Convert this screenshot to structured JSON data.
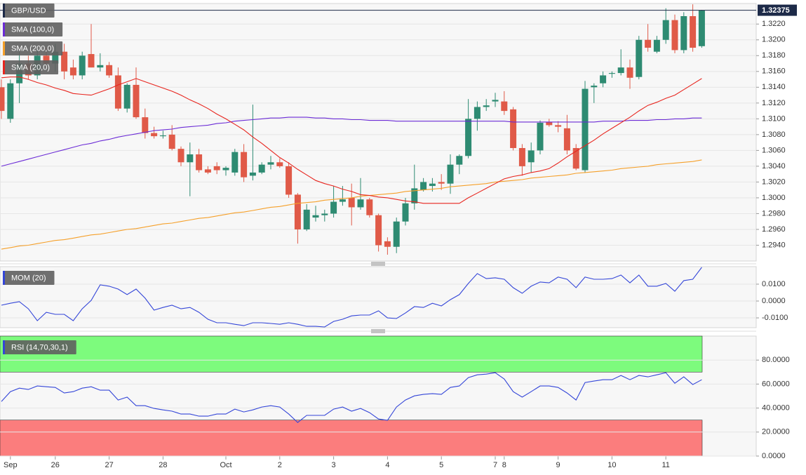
{
  "chart_data": [
    {
      "type": "candlestick",
      "title": "GBP/USD",
      "categories": [
        null,
        "Sep",
        null,
        null,
        null,
        null,
        "26",
        null,
        null,
        null,
        null,
        null,
        "27",
        null,
        null,
        null,
        null,
        null,
        "28",
        null,
        null,
        null,
        null,
        null,
        null,
        "Oct",
        null,
        null,
        null,
        null,
        null,
        "2",
        null,
        null,
        null,
        null,
        null,
        "3",
        null,
        null,
        null,
        null,
        null,
        "4",
        null,
        null,
        null,
        null,
        null,
        "5",
        null,
        null,
        null,
        null,
        null,
        "7",
        "8",
        null,
        null,
        null,
        null,
        null,
        "9",
        null,
        null,
        null,
        null,
        null,
        "10",
        null,
        null,
        null,
        null,
        null,
        "11",
        null,
        null,
        null,
        null
      ],
      "open": [
        1.314,
        1.31,
        1.3145,
        1.317,
        1.3155,
        1.318,
        1.317,
        1.3185,
        1.3165,
        1.3155,
        1.3182,
        1.3165,
        1.3168,
        1.3155,
        1.3113,
        1.3143,
        1.3102,
        1.3082,
        1.3078,
        1.308,
        1.3062,
        1.3045,
        1.3055,
        1.3036,
        1.304,
        1.3035,
        1.3032,
        1.3058,
        1.3028,
        1.3032,
        1.3042,
        1.3045,
        1.304,
        1.3004,
        1.296,
        1.2975,
        1.2978,
        1.298,
        1.2995,
        1.3,
        1.2988,
        1.2998,
        1.2978,
        1.2945,
        1.2938,
        1.297,
        1.2993,
        1.301,
        1.3015,
        1.302,
        1.3018,
        1.3042,
        1.3053,
        1.31,
        1.3115,
        1.3122,
        1.3122,
        1.3112,
        1.3063,
        1.3045,
        1.306,
        1.3096,
        1.3092,
        1.3088,
        1.3063,
        1.3035,
        1.314,
        1.3145,
        1.3157,
        1.3158,
        1.3165,
        1.3153,
        1.32,
        1.3185,
        1.32,
        1.3225,
        1.3187,
        1.323,
        1.3192
      ],
      "high": [
        1.315,
        1.315,
        1.3185,
        1.318,
        1.319,
        1.319,
        1.3195,
        1.3195,
        1.3175,
        1.3185,
        1.322,
        1.3183,
        1.3172,
        1.3165,
        1.3145,
        1.3165,
        1.3113,
        1.309,
        1.3085,
        1.3092,
        1.3065,
        1.307,
        1.3062,
        1.304,
        1.3045,
        1.304,
        1.3062,
        1.3068,
        1.3118,
        1.3045,
        1.3053,
        1.305,
        1.3045,
        1.3006,
        1.2992,
        1.299,
        1.2985,
        1.3015,
        1.3015,
        1.3018,
        1.3025,
        1.3,
        1.298,
        1.295,
        1.2975,
        1.3,
        1.3042,
        1.3025,
        1.3025,
        1.303,
        1.3055,
        1.3055,
        1.3125,
        1.3122,
        1.3125,
        1.3133,
        1.3135,
        1.3115,
        1.3068,
        1.307,
        1.3098,
        1.31,
        1.3097,
        1.3105,
        1.3068,
        1.3148,
        1.3145,
        1.316,
        1.316,
        1.3188,
        1.3175,
        1.3205,
        1.322,
        1.3205,
        1.324,
        1.3232,
        1.3235,
        1.3245,
        1.3238
      ],
      "low": [
        1.31,
        1.3095,
        1.312,
        1.315,
        1.315,
        1.3165,
        1.316,
        1.315,
        1.315,
        1.315,
        1.3165,
        1.316,
        1.3152,
        1.311,
        1.3108,
        1.31,
        1.3075,
        1.3075,
        1.3075,
        1.306,
        1.304,
        1.3002,
        1.3032,
        1.303,
        1.303,
        1.3028,
        1.3028,
        1.302,
        1.3022,
        1.303,
        1.3036,
        1.3038,
        1.3,
        1.2942,
        1.2958,
        1.297,
        1.297,
        1.2975,
        1.299,
        1.2965,
        1.2985,
        1.2975,
        1.2932,
        1.2928,
        1.293,
        1.2965,
        1.2985,
        1.3008,
        1.3008,
        1.301,
        1.3005,
        1.303,
        1.305,
        1.3085,
        1.311,
        1.3115,
        1.3105,
        1.306,
        1.3028,
        1.3032,
        1.3055,
        1.309,
        1.3083,
        1.3055,
        1.3035,
        1.3032,
        1.312,
        1.314,
        1.3152,
        1.3155,
        1.3138,
        1.315,
        1.3185,
        1.3183,
        1.3195,
        1.3183,
        1.3183,
        1.3185,
        1.319
      ],
      "close": [
        1.311,
        1.3145,
        1.317,
        1.3155,
        1.318,
        1.317,
        1.3185,
        1.316,
        1.3155,
        1.318,
        1.3165,
        1.3168,
        1.3155,
        1.3113,
        1.3143,
        1.3102,
        1.3082,
        1.3078,
        1.3079,
        1.3062,
        1.3045,
        1.3055,
        1.3035,
        1.3032,
        1.3035,
        1.3038,
        1.3058,
        1.3026,
        1.3032,
        1.3042,
        1.3045,
        1.304,
        1.3004,
        1.296,
        1.2985,
        1.2978,
        1.298,
        1.2995,
        1.2998,
        1.2988,
        1.2998,
        1.2978,
        1.294,
        1.2938,
        1.297,
        1.2993,
        1.3012,
        1.302,
        1.3018,
        1.3018,
        1.3042,
        1.3053,
        1.31,
        1.3115,
        1.3117,
        1.3124,
        1.311,
        1.3063,
        1.304,
        1.306,
        1.3095,
        1.3092,
        1.309,
        1.306,
        1.3037,
        1.3138,
        1.3142,
        1.3155,
        1.3158,
        1.3165,
        1.3152,
        1.32,
        1.319,
        1.32,
        1.3225,
        1.3187,
        1.323,
        1.319,
        1.32375
      ],
      "up_color": "#2e8b72",
      "down_color": "#e05a48",
      "series": [
        {
          "name": "SMA (100,0)",
          "color": "#6b2bd6",
          "values": [
            1.304,
            1.3043,
            1.3046,
            1.3049,
            1.3052,
            1.3055,
            1.3058,
            1.3061,
            1.3064,
            1.3067,
            1.3069,
            1.3072,
            1.3074,
            1.3077,
            1.3079,
            1.3081,
            1.3083,
            1.3085,
            1.3086,
            1.3087,
            1.3089,
            1.309,
            1.3091,
            1.3092,
            1.3094,
            1.3095,
            1.3097,
            1.3098,
            1.3099,
            1.31,
            1.3101,
            1.3101,
            1.3102,
            1.3102,
            1.3102,
            1.3101,
            1.3101,
            1.31,
            1.31,
            1.3099,
            1.3099,
            1.3098,
            1.3098,
            1.3098,
            1.3097,
            1.3097,
            1.3097,
            1.3097,
            1.3097,
            1.3097,
            1.3097,
            1.3097,
            1.3097,
            1.3097,
            1.3097,
            1.3097,
            1.3097,
            1.3096,
            1.3096,
            1.3096,
            1.3096,
            1.3096,
            1.3096,
            1.3096,
            1.3096,
            1.3096,
            1.3096,
            1.3097,
            1.3097,
            1.3097,
            1.3098,
            1.3098,
            1.3098,
            1.3099,
            1.3099,
            1.31,
            1.31,
            1.3101,
            1.3101
          ]
        },
        {
          "name": "SMA (200,0)",
          "color": "#f5a02a",
          "values": [
            1.2935,
            1.2937,
            1.2939,
            1.294,
            1.2942,
            1.2944,
            1.2946,
            1.2947,
            1.2949,
            1.2951,
            1.2953,
            1.2954,
            1.2956,
            1.2958,
            1.296,
            1.2961,
            1.2963,
            1.2965,
            1.2967,
            1.2968,
            1.297,
            1.2972,
            1.2974,
            1.2975,
            1.2977,
            1.2979,
            1.2981,
            1.2982,
            1.2984,
            1.2986,
            1.2988,
            1.2989,
            1.2991,
            1.2993,
            1.2994,
            1.2995,
            1.2997,
            1.2998,
            1.2999,
            1.3,
            1.3002,
            1.3003,
            1.3004,
            1.3005,
            1.3006,
            1.3008,
            1.3009,
            1.301,
            1.3011,
            1.3012,
            1.3014,
            1.3015,
            1.3016,
            1.3017,
            1.3018,
            1.302,
            1.3021,
            1.3022,
            1.3023,
            1.3025,
            1.3026,
            1.3027,
            1.3028,
            1.3029,
            1.3031,
            1.3032,
            1.3033,
            1.3034,
            1.3035,
            1.3037,
            1.3038,
            1.3039,
            1.304,
            1.3042,
            1.3043,
            1.3044,
            1.3045,
            1.3046,
            1.3048
          ]
        },
        {
          "name": "SMA (20,0)",
          "color": "#e8261f",
          "values": [
            1.3152,
            1.3153,
            1.3153,
            1.315,
            1.3146,
            1.3143,
            1.3139,
            1.3136,
            1.3132,
            1.3131,
            1.313,
            1.3134,
            1.3138,
            1.3143,
            1.3147,
            1.3151,
            1.3147,
            1.3143,
            1.3139,
            1.3135,
            1.313,
            1.3124,
            1.3119,
            1.3113,
            1.3106,
            1.31,
            1.3093,
            1.3086,
            1.3077,
            1.3069,
            1.306,
            1.3051,
            1.3044,
            1.3036,
            1.3029,
            1.3022,
            1.3018,
            1.3015,
            1.3011,
            1.3008,
            1.3004,
            1.3003,
            1.3001,
            1.3,
            1.2998,
            1.2996,
            1.2995,
            1.2993,
            1.2993,
            1.2993,
            1.2993,
            1.2993,
            1.3,
            1.3006,
            1.3012,
            1.3018,
            1.3024,
            1.3027,
            1.3029,
            1.3032,
            1.3034,
            1.3037,
            1.3044,
            1.3052,
            1.3059,
            1.3066,
            1.3073,
            1.3081,
            1.3088,
            1.3095,
            1.3102,
            1.311,
            1.3117,
            1.3121,
            1.3126,
            1.313,
            1.3137,
            1.3144,
            1.3151
          ]
        }
      ],
      "ylim": [
        1.292,
        1.3246
      ],
      "yticks": [
        {
          "value": 1.294,
          "label": "1.2940"
        },
        {
          "value": 1.296,
          "label": "1.2960"
        },
        {
          "value": 1.298,
          "label": "1.2980"
        },
        {
          "value": 1.3,
          "label": "1.3000"
        },
        {
          "value": 1.302,
          "label": "1.3020"
        },
        {
          "value": 1.304,
          "label": "1.3040"
        },
        {
          "value": 1.306,
          "label": "1.3060"
        },
        {
          "value": 1.308,
          "label": "1.3080"
        },
        {
          "value": 1.31,
          "label": "1.3100"
        },
        {
          "value": 1.312,
          "label": "1.3120"
        },
        {
          "value": 1.314,
          "label": "1.3140"
        },
        {
          "value": 1.316,
          "label": "1.3160"
        },
        {
          "value": 1.318,
          "label": "1.3180"
        },
        {
          "value": 1.32,
          "label": "1.3200"
        },
        {
          "value": 1.322,
          "label": "1.3220"
        }
      ],
      "grid": true
    },
    {
      "type": "line",
      "series": [
        {
          "name": "MOM (20)",
          "color": "#3446d8",
          "values": [
            -0.0025,
            -0.0013,
            -0.0004,
            -0.0046,
            -0.0117,
            -0.0067,
            -0.0079,
            -0.0079,
            -0.0117,
            -0.0046,
            0.0004,
            0.0096,
            0.0088,
            0.0071,
            0.0038,
            0.0071,
            0.0017,
            -0.0054,
            -0.0038,
            -0.0025,
            -0.0046,
            -0.0038,
            -0.0067,
            -0.0108,
            -0.0129,
            -0.0129,
            -0.0138,
            -0.0146,
            -0.0129,
            -0.0129,
            -0.0133,
            -0.0138,
            -0.0129,
            -0.0138,
            -0.015,
            -0.015,
            -0.0154,
            -0.0121,
            -0.0108,
            -0.0088,
            -0.0083,
            -0.0083,
            -0.0058,
            -0.01,
            -0.0104,
            -0.0071,
            -0.0033,
            -0.0038,
            -0.0013,
            -0.0029,
            0.0008,
            0.0038,
            0.0104,
            0.0163,
            0.0133,
            0.0138,
            0.0129,
            0.0079,
            0.0046,
            0.0088,
            0.0113,
            0.0108,
            0.0142,
            0.0129,
            0.0079,
            0.0142,
            0.0129,
            0.0129,
            0.0133,
            0.0154,
            0.0108,
            0.0154,
            0.0088,
            0.0088,
            0.0104,
            0.0058,
            0.0121,
            0.0129,
            0.02
          ]
        }
      ],
      "ylim": [
        -0.0158,
        0.0204
      ],
      "yticks": [
        {
          "value": -0.01,
          "label": "-0.0100"
        },
        {
          "value": 0,
          "label": "0.0000"
        },
        {
          "value": 0.01,
          "label": "0.0100"
        }
      ],
      "grid": true
    },
    {
      "type": "line",
      "series": [
        {
          "name": "RSI (14,70,30,1)",
          "color": "#3446d8",
          "values": [
            45.5,
            53.7,
            56.6,
            55.5,
            58.4,
            57.8,
            57.2,
            52.6,
            53.7,
            56.6,
            57.8,
            54.9,
            54.9,
            46.7,
            49.1,
            42.0,
            42.0,
            39.7,
            38.5,
            37.4,
            35.0,
            35.0,
            33.3,
            33.3,
            35.0,
            35.0,
            39.1,
            36.8,
            38.5,
            40.9,
            42.0,
            40.9,
            35.0,
            28.0,
            33.9,
            33.9,
            33.9,
            39.1,
            40.9,
            37.4,
            39.7,
            36.2,
            30.9,
            29.8,
            40.9,
            46.7,
            50.2,
            51.4,
            52.0,
            51.4,
            57.2,
            58.4,
            65.4,
            67.7,
            68.3,
            69.5,
            64.2,
            53.7,
            49.1,
            53.7,
            58.4,
            58.4,
            57.2,
            52.6,
            46.7,
            61.3,
            62.5,
            63.6,
            63.6,
            67.2,
            63.6,
            67.2,
            66.0,
            67.7,
            69.5,
            60.7,
            66.0,
            59.6,
            63.6
          ]
        }
      ],
      "bands": [
        {
          "from": 70,
          "to": 100,
          "color": "#7dfb7d"
        },
        {
          "from": 0,
          "to": 30,
          "color": "#fb7d7d"
        }
      ],
      "ylim": [
        0,
        100
      ],
      "yticks": [
        {
          "value": 0,
          "label": "0.0000"
        },
        {
          "value": 20,
          "label": "20.0000"
        },
        {
          "value": 40,
          "label": "40.0000"
        },
        {
          "value": 60,
          "label": "60.0000"
        },
        {
          "value": 80,
          "label": "80.0000"
        }
      ],
      "grid": true
    }
  ]
}
